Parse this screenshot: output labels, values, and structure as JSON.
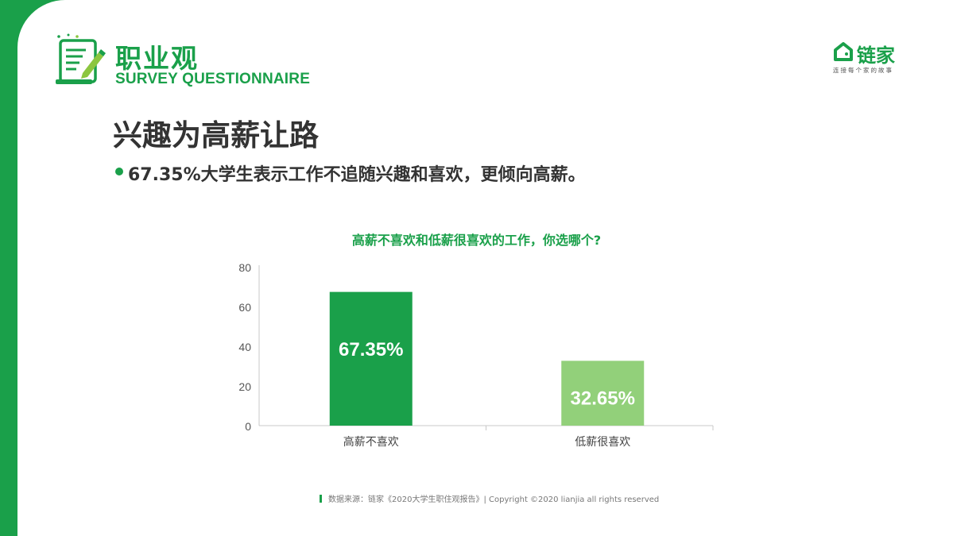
{
  "header": {
    "title": "职业观",
    "subtitle": "SURVEY QUESTIONNAIRE"
  },
  "logo": {
    "text": "链家",
    "tagline": "连接每个家的故事"
  },
  "page_title": "兴趣为高薪让路",
  "bullet": "67.35%大学生表示工作不追随兴趣和喜欢，更倾向高薪。",
  "footer": "数据来源：链家《2020大学生职住观报告》| Copyright ©2020 lianjia all rights reserved",
  "colors": {
    "brand_green": "#1aa04a",
    "bar_dark": "#1aa04a",
    "bar_light": "#92d07a"
  },
  "chart_data": {
    "type": "bar",
    "title": "高薪不喜欢和低薪很喜欢的工作，你选哪个?",
    "categories": [
      "高薪不喜欢",
      "低薪很喜欢"
    ],
    "values": [
      67.35,
      32.65
    ],
    "data_labels": [
      "67.35%",
      "32.65%"
    ],
    "bar_colors": [
      "#1aa04a",
      "#92d07a"
    ],
    "ylim": [
      0,
      80
    ],
    "yticks": [
      0,
      20,
      40,
      60,
      80
    ],
    "ytick_labels": [
      "0",
      "20",
      "40",
      "60",
      "80"
    ],
    "xlabel": "",
    "ylabel": "",
    "grid": false
  }
}
